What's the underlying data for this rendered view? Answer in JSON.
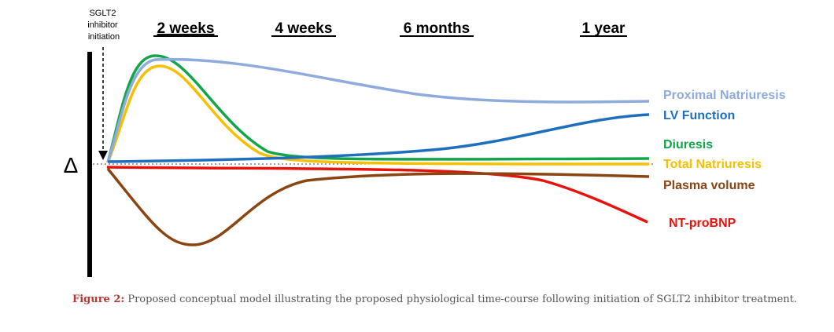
{
  "initiation_label": [
    "SGLT2",
    "inhibitor",
    "initiation"
  ],
  "delta_symbol": "Δ",
  "timepoints": [
    "2 weeks",
    "4 weeks",
    "6 months",
    "1 year"
  ],
  "series": [
    {
      "key": "proximal_natriuresis",
      "label": "Proximal Natriuresis",
      "color": "#8faadc"
    },
    {
      "key": "lv_function",
      "label": "LV Function",
      "color": "#1f6fbf"
    },
    {
      "key": "diuresis",
      "label": "Diuresis",
      "color": "#13a54a"
    },
    {
      "key": "total_natriuresis",
      "label": "Total Natriuresis",
      "color": "#f5c000"
    },
    {
      "key": "plasma_volume",
      "label": "Plasma volume",
      "color": "#8b4513"
    },
    {
      "key": "nt_probnp",
      "label": "NT-proBNP",
      "color": "#e8120c"
    }
  ],
  "caption": {
    "label": "Figure 2:",
    "text": "Proposed conceptual model illustrating the proposed physiological time-course following initiation of SGLT2 inhibitor treatment."
  }
}
